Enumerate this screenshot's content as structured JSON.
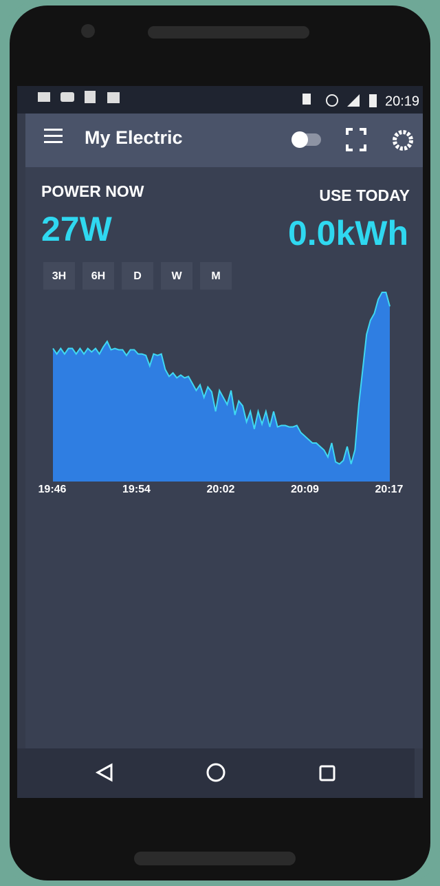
{
  "status_bar": {
    "time": "20:19"
  },
  "app_bar": {
    "title": "My Electric"
  },
  "power_now": {
    "label": "POWER NOW",
    "value": "27W"
  },
  "use_today": {
    "label": "USE TODAY",
    "value": "0.0kWh"
  },
  "range_buttons": [
    "3H",
    "6H",
    "D",
    "W",
    "M"
  ],
  "chart_data": {
    "type": "area",
    "line_color": "#3fd8f2",
    "fill_color": "#2f7ee2",
    "xticks": [
      "19:46",
      "19:54",
      "20:02",
      "20:09",
      "20:17"
    ],
    "values": [
      190,
      182,
      190,
      182,
      190,
      190,
      182,
      190,
      182,
      190,
      185,
      190,
      182,
      192,
      200,
      188,
      190,
      188,
      188,
      180,
      188,
      188,
      182,
      182,
      180,
      165,
      182,
      180,
      182,
      160,
      150,
      155,
      148,
      152,
      148,
      150,
      140,
      130,
      138,
      120,
      135,
      128,
      100,
      130,
      120,
      110,
      130,
      95,
      115,
      108,
      85,
      100,
      75,
      100,
      82,
      100,
      78,
      100,
      78,
      80,
      80,
      78,
      78,
      80,
      70,
      65,
      60,
      55,
      55,
      50,
      45,
      35,
      55,
      28,
      25,
      30,
      50,
      25,
      45,
      110,
      160,
      210,
      230,
      240,
      260,
      270,
      270,
      250
    ]
  }
}
